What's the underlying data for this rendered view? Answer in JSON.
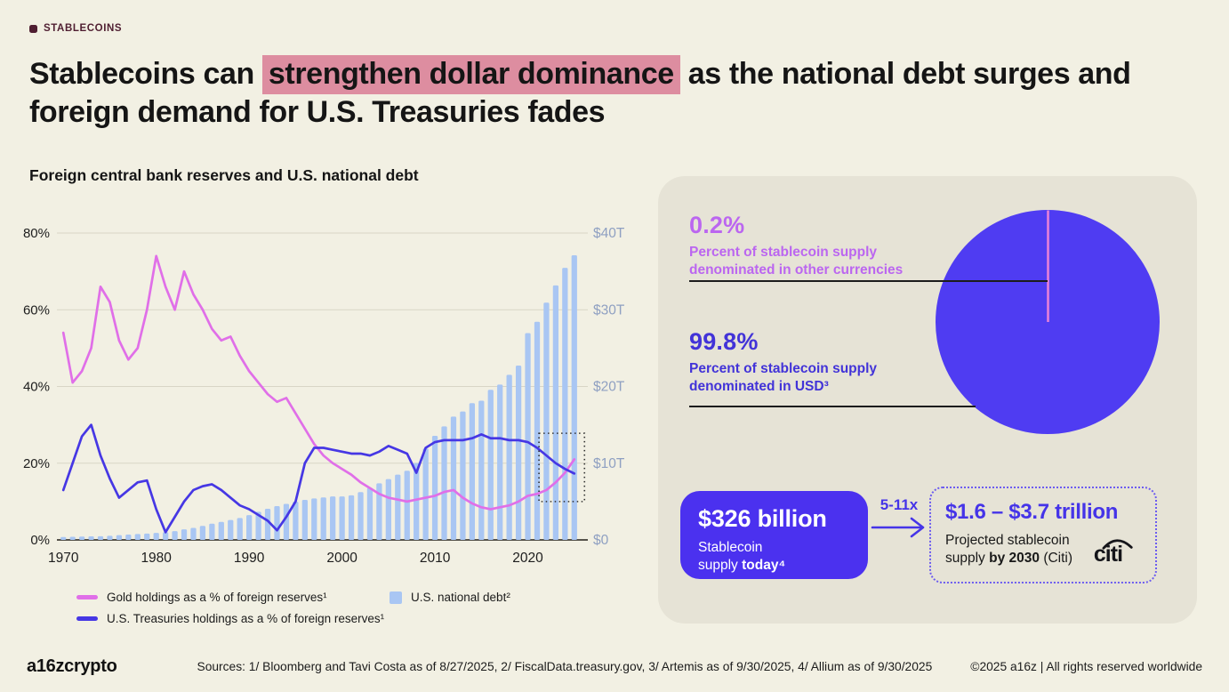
{
  "header": {
    "eyebrow": "STABLECOINS"
  },
  "title": {
    "part1": "Stablecoins can ",
    "highlight": "strengthen dollar dominance",
    "part2": " as the national debt surges and foreign demand for U.S. Treasuries fades"
  },
  "chart_section": {
    "title": "Foreign central bank reserves and U.S. national debt"
  },
  "chart_data": [
    {
      "type": "combo",
      "title": "Foreign central bank reserves and U.S. national debt",
      "x": [
        1970,
        1971,
        1972,
        1973,
        1974,
        1975,
        1976,
        1977,
        1978,
        1979,
        1980,
        1981,
        1982,
        1983,
        1984,
        1985,
        1986,
        1987,
        1988,
        1989,
        1990,
        1991,
        1992,
        1993,
        1994,
        1995,
        1996,
        1997,
        1998,
        1999,
        2000,
        2001,
        2002,
        2003,
        2004,
        2005,
        2006,
        2007,
        2008,
        2009,
        2010,
        2011,
        2012,
        2013,
        2014,
        2015,
        2016,
        2017,
        2018,
        2019,
        2020,
        2021,
        2022,
        2023,
        2024,
        2025
      ],
      "x_ticks": [
        1970,
        1980,
        1990,
        2000,
        2010,
        2020
      ],
      "left_axis": {
        "max": 80,
        "ticks": [
          [
            0,
            "0%"
          ],
          [
            20,
            "20%"
          ],
          [
            40,
            "40%"
          ],
          [
            60,
            "60%"
          ],
          [
            80,
            "80%"
          ]
        ]
      },
      "right_axis": {
        "max": 40,
        "ticks": [
          [
            0,
            "$0"
          ],
          [
            10,
            "$10T"
          ],
          [
            20,
            "$20T"
          ],
          [
            30,
            "$30T"
          ],
          [
            40,
            "$40T"
          ]
        ]
      },
      "series": [
        {
          "name": "Gold holdings as a % of foreign reserves¹",
          "type": "line",
          "axis": "left",
          "color": "#e06fe8",
          "values": [
            54,
            41,
            44,
            50,
            66,
            62,
            52,
            47,
            50,
            60,
            74,
            66,
            60,
            70,
            64,
            60,
            55,
            52,
            53,
            48,
            44,
            41,
            38,
            36,
            37,
            33,
            29,
            25,
            22,
            20,
            18.5,
            17,
            15,
            13.5,
            12,
            11,
            10.5,
            10,
            10.5,
            11,
            11.5,
            12.5,
            13,
            11,
            9.5,
            8.5,
            8,
            8.5,
            9,
            10,
            11.5,
            12,
            13,
            15,
            17.5,
            21
          ]
        },
        {
          "name": "U.S. Treasuries holdings as a % of foreign reserves¹",
          "type": "line",
          "axis": "left",
          "color": "#4637e4",
          "values": [
            13,
            20,
            27,
            30,
            22,
            16,
            11,
            13,
            15,
            15.5,
            8,
            2,
            6,
            10,
            13,
            14,
            14.5,
            13,
            11,
            9,
            8,
            6.5,
            5,
            2.5,
            6,
            10,
            20,
            24,
            24,
            23.5,
            23,
            22.5,
            22.5,
            22,
            23,
            24.5,
            23.5,
            22.5,
            17.5,
            24,
            25.5,
            26,
            26,
            26,
            26.5,
            27.5,
            26.5,
            26.5,
            26,
            26,
            25.5,
            24,
            22,
            20,
            18.5,
            17.3
          ]
        },
        {
          "name": "U.S. national debt²",
          "type": "bar",
          "axis": "right",
          "color": "#a9c6f3",
          "values": [
            0.37,
            0.4,
            0.43,
            0.46,
            0.48,
            0.53,
            0.62,
            0.7,
            0.77,
            0.83,
            0.91,
            1.0,
            1.14,
            1.38,
            1.57,
            1.82,
            2.12,
            2.35,
            2.6,
            2.86,
            3.23,
            3.67,
            4.06,
            4.41,
            4.69,
            4.97,
            5.22,
            5.41,
            5.53,
            5.66,
            5.67,
            5.81,
            6.23,
            6.78,
            7.38,
            7.93,
            8.51,
            9.01,
            10.02,
            11.91,
            13.56,
            14.79,
            16.07,
            16.74,
            17.82,
            18.15,
            19.57,
            20.24,
            21.52,
            22.72,
            26.95,
            28.43,
            30.93,
            33.17,
            35.46,
            37.1
          ]
        }
      ],
      "highlight_box": {
        "from_year": 2021.7,
        "to_year": 2026.6,
        "pct_low": 10,
        "pct_high": 27.8
      }
    },
    {
      "type": "pie",
      "slices": [
        {
          "label": "Percent of stablecoin supply denominated in USD³",
          "value": 99.8,
          "color": "#4f3cf2"
        },
        {
          "label": "Percent of stablecoin supply denominated in other currencies",
          "value": 0.2,
          "color": "#e580d8"
        }
      ],
      "legend_position": "left-callouts"
    }
  ],
  "panel": {
    "stats": [
      {
        "value": "0.2%",
        "label": "Percent of stablecoin supply denominated in other currencies",
        "color": "#bb66f0"
      },
      {
        "value": "99.8%",
        "label": "Percent of stablecoin supply denominated in USD³",
        "color": "#4233d8"
      }
    ],
    "supply_now": {
      "value": "$326 billion",
      "label_prefix": "Stablecoin supply ",
      "label_bold": "today⁴"
    },
    "multiplier": "5-11x",
    "projection": {
      "value": "$1.6 – $3.7 trillion",
      "label_prefix": "Projected stablecoin supply ",
      "label_bold": "by 2030",
      "label_suffix": " (Citi)",
      "logo_text": "citi"
    }
  },
  "footer": {
    "logo": "a16zcrypto",
    "sources": "Sources: 1/ Bloomberg and Tavi Costa as of 8/27/2025, 2/ FiscalData.treasury.gov, 3/ Artemis as of 9/30/2025, 4/ Allium as of 9/30/2025",
    "copyright": "©2025 a16z | All rights reserved worldwide"
  },
  "colors": {
    "page_bg": "#f2f0e3",
    "panel_bg": "#e6e3d6",
    "ink": "#151515",
    "maroon": "#4f1e31",
    "highlight_pink": "#dd8da0",
    "indigo": "#4534e8",
    "magenta": "#e06fe8",
    "bar_blue": "#a9c6f3",
    "right_axis": "#8fa0c2",
    "violet": "#bb66f0",
    "stat_indigo": "#4233d8",
    "pie_indigo": "#4f3cf2",
    "pie_pink": "#e580d8",
    "card_indigo": "#4b31ef",
    "dash_border": "#6c5cf0"
  }
}
